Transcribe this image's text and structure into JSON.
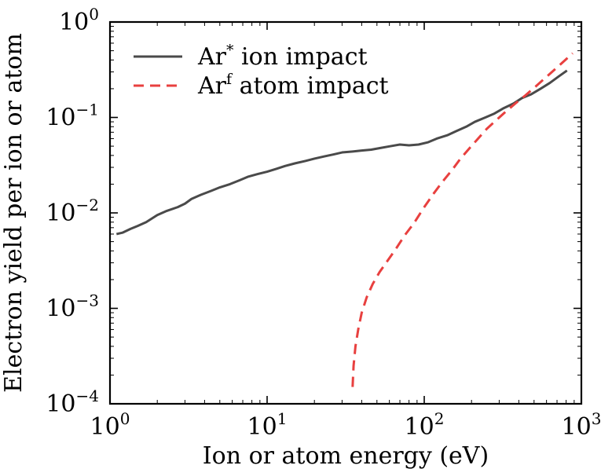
{
  "chart_data": {
    "type": "line",
    "xscale": "log",
    "yscale": "log",
    "xlabel": "Ion or atom energy (eV)",
    "ylabel": "Electron yield per ion or atom",
    "xlim": [
      1,
      1000
    ],
    "ylim": [
      0.0001,
      1
    ],
    "x_ticks": [
      {
        "base": "10",
        "exp": "0",
        "value": 1
      },
      {
        "base": "10",
        "exp": "1",
        "value": 10
      },
      {
        "base": "10",
        "exp": "2",
        "value": 100
      },
      {
        "base": "10",
        "exp": "3",
        "value": 1000
      }
    ],
    "y_ticks": [
      {
        "base": "10",
        "exp": "0",
        "value": 1
      },
      {
        "base": "10",
        "exp": "−1",
        "value": 0.1
      },
      {
        "base": "10",
        "exp": "−2",
        "value": 0.01
      },
      {
        "base": "10",
        "exp": "−3",
        "value": 0.001
      },
      {
        "base": "10",
        "exp": "−4",
        "value": 0.0001
      }
    ],
    "legend_position": "top-left",
    "series": [
      {
        "name": "ion",
        "legend_main": "Ar",
        "legend_sup": "*",
        "legend_rest": " ion impact",
        "color": "#4a4a4a",
        "style": "solid",
        "x": [
          1.1,
          1.2,
          1.35,
          1.5,
          1.7,
          2.0,
          2.3,
          2.7,
          3.0,
          3.3,
          3.8,
          4.4,
          5.0,
          5.8,
          6.7,
          7.6,
          8.7,
          10,
          11.5,
          13,
          15,
          17.5,
          20,
          23,
          26.5,
          30,
          35,
          40,
          46,
          53,
          61,
          70,
          80,
          92,
          106,
          120,
          140,
          160,
          185,
          210,
          245,
          280,
          320,
          370,
          420,
          480,
          550,
          630,
          720,
          810
        ],
        "y": [
          0.006,
          0.0062,
          0.0068,
          0.0073,
          0.008,
          0.0095,
          0.0105,
          0.0115,
          0.0125,
          0.014,
          0.0155,
          0.017,
          0.0185,
          0.02,
          0.022,
          0.024,
          0.0255,
          0.027,
          0.029,
          0.031,
          0.033,
          0.035,
          0.037,
          0.039,
          0.041,
          0.043,
          0.044,
          0.045,
          0.046,
          0.048,
          0.05,
          0.052,
          0.051,
          0.052,
          0.055,
          0.06,
          0.065,
          0.072,
          0.08,
          0.09,
          0.1,
          0.11,
          0.125,
          0.14,
          0.16,
          0.175,
          0.2,
          0.23,
          0.27,
          0.31
        ]
      },
      {
        "name": "atom",
        "legend_main": "Ar",
        "legend_sup": "f",
        "legend_rest": " atom impact",
        "color": "#e8403f",
        "style": "dashed",
        "x": [
          35,
          35.5,
          36.5,
          38,
          40,
          43,
          47,
          52,
          58,
          66,
          75,
          86,
          100,
          115,
          130,
          150,
          170,
          195,
          220,
          250,
          290,
          330,
          380,
          440,
          510,
          590,
          680,
          790,
          880
        ],
        "y": [
          0.00015,
          0.00025,
          0.0004,
          0.0006,
          0.0009,
          0.0013,
          0.0018,
          0.0024,
          0.0031,
          0.0042,
          0.0058,
          0.0078,
          0.0115,
          0.016,
          0.021,
          0.028,
          0.037,
          0.048,
          0.06,
          0.076,
          0.095,
          0.115,
          0.14,
          0.17,
          0.21,
          0.26,
          0.32,
          0.4,
          0.47
        ]
      }
    ]
  }
}
